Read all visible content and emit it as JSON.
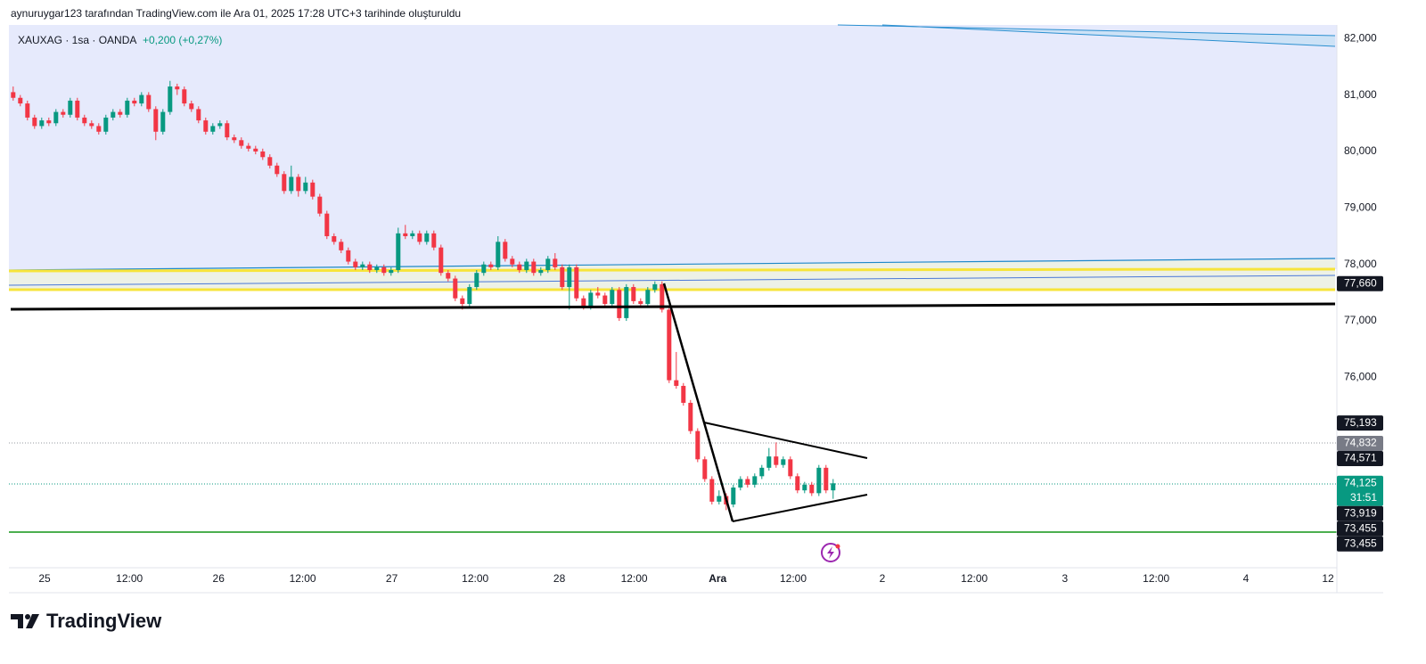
{
  "header": {
    "caption": "aynuruygar123 tarafından TradingView.com ile Ara 01, 2025 17:28 UTC+3 tarihinde oluşturuldu"
  },
  "chart_data": {
    "type": "candlestick",
    "symbol": "XAUXAG · 1sa · OANDA",
    "change": "+0,200 (+0,27%)",
    "up_color": "#089981",
    "down_color": "#f23645",
    "ohlc": [
      [
        81.05,
        81.15,
        80.9,
        80.95
      ],
      [
        80.95,
        81.0,
        80.8,
        80.85
      ],
      [
        80.85,
        80.9,
        80.55,
        80.6
      ],
      [
        80.6,
        80.65,
        80.4,
        80.45
      ],
      [
        80.45,
        80.6,
        80.4,
        80.55
      ],
      [
        80.55,
        80.6,
        80.45,
        80.5
      ],
      [
        80.5,
        80.75,
        80.45,
        80.7
      ],
      [
        80.7,
        80.75,
        80.6,
        80.65
      ],
      [
        80.65,
        80.95,
        80.6,
        80.9
      ],
      [
        80.9,
        80.95,
        80.55,
        80.6
      ],
      [
        80.6,
        80.65,
        80.45,
        80.5
      ],
      [
        80.5,
        80.55,
        80.4,
        80.45
      ],
      [
        80.45,
        80.5,
        80.3,
        80.35
      ],
      [
        80.35,
        80.65,
        80.3,
        80.6
      ],
      [
        80.6,
        80.75,
        80.55,
        80.7
      ],
      [
        80.7,
        80.75,
        80.6,
        80.65
      ],
      [
        80.65,
        80.95,
        80.6,
        80.9
      ],
      [
        80.9,
        80.95,
        80.8,
        80.85
      ],
      [
        80.85,
        81.05,
        80.8,
        81.0
      ],
      [
        81.0,
        81.05,
        80.7,
        80.75
      ],
      [
        80.75,
        80.8,
        80.2,
        80.35
      ],
      [
        80.35,
        80.75,
        80.3,
        80.7
      ],
      [
        80.7,
        81.25,
        80.65,
        81.15
      ],
      [
        81.15,
        81.2,
        81.0,
        81.1
      ],
      [
        81.1,
        81.15,
        80.8,
        80.85
      ],
      [
        80.85,
        80.9,
        80.7,
        80.75
      ],
      [
        80.75,
        80.8,
        80.5,
        80.55
      ],
      [
        80.55,
        80.6,
        80.3,
        80.35
      ],
      [
        80.35,
        80.5,
        80.3,
        80.45
      ],
      [
        80.45,
        80.55,
        80.4,
        80.5
      ],
      [
        80.5,
        80.55,
        80.2,
        80.25
      ],
      [
        80.25,
        80.3,
        80.15,
        80.2
      ],
      [
        80.2,
        80.25,
        80.05,
        80.1
      ],
      [
        80.1,
        80.15,
        80.0,
        80.05
      ],
      [
        80.05,
        80.1,
        79.95,
        80.0
      ],
      [
        80.0,
        80.05,
        79.85,
        79.9
      ],
      [
        79.9,
        79.95,
        79.7,
        79.75
      ],
      [
        79.75,
        79.8,
        79.55,
        79.6
      ],
      [
        79.6,
        79.65,
        79.25,
        79.3
      ],
      [
        79.3,
        79.75,
        79.25,
        79.55
      ],
      [
        79.55,
        79.6,
        79.2,
        79.3
      ],
      [
        79.3,
        79.55,
        79.25,
        79.45
      ],
      [
        79.45,
        79.5,
        79.15,
        79.2
      ],
      [
        79.2,
        79.25,
        78.85,
        78.9
      ],
      [
        78.9,
        78.95,
        78.45,
        78.5
      ],
      [
        78.5,
        78.55,
        78.35,
        78.4
      ],
      [
        78.4,
        78.45,
        78.2,
        78.25
      ],
      [
        78.25,
        78.3,
        78.0,
        78.05
      ],
      [
        78.05,
        78.1,
        77.9,
        77.95
      ],
      [
        77.95,
        78.05,
        77.9,
        78.0
      ],
      [
        78.0,
        78.05,
        77.85,
        77.9
      ],
      [
        77.9,
        78.0,
        77.85,
        77.95
      ],
      [
        77.95,
        78.0,
        77.8,
        77.85
      ],
      [
        77.85,
        77.95,
        77.8,
        77.9
      ],
      [
        77.9,
        78.65,
        77.85,
        78.55
      ],
      [
        78.55,
        78.7,
        78.45,
        78.5
      ],
      [
        78.5,
        78.6,
        78.45,
        78.55
      ],
      [
        78.55,
        78.6,
        78.35,
        78.4
      ],
      [
        78.4,
        78.6,
        78.35,
        78.55
      ],
      [
        78.55,
        78.6,
        78.25,
        78.3
      ],
      [
        78.3,
        78.35,
        77.8,
        77.85
      ],
      [
        77.85,
        77.9,
        77.7,
        77.75
      ],
      [
        77.75,
        77.8,
        77.35,
        77.4
      ],
      [
        77.4,
        77.45,
        77.2,
        77.3
      ],
      [
        77.3,
        77.65,
        77.25,
        77.6
      ],
      [
        77.6,
        77.9,
        77.55,
        77.85
      ],
      [
        77.85,
        78.05,
        77.8,
        78.0
      ],
      [
        78.0,
        78.05,
        77.9,
        77.95
      ],
      [
        77.95,
        78.5,
        77.9,
        78.4
      ],
      [
        78.4,
        78.45,
        78.05,
        78.1
      ],
      [
        78.1,
        78.15,
        77.95,
        78.0
      ],
      [
        78.0,
        78.05,
        77.85,
        77.9
      ],
      [
        77.9,
        78.1,
        77.85,
        78.05
      ],
      [
        78.05,
        78.1,
        77.8,
        77.85
      ],
      [
        77.85,
        77.95,
        77.8,
        77.9
      ],
      [
        77.9,
        78.15,
        77.85,
        78.1
      ],
      [
        78.1,
        78.2,
        77.9,
        77.95
      ],
      [
        77.95,
        78.0,
        77.55,
        77.6
      ],
      [
        77.6,
        78.0,
        77.2,
        77.95
      ],
      [
        77.95,
        78.0,
        77.35,
        77.4
      ],
      [
        77.4,
        77.45,
        77.2,
        77.25
      ],
      [
        77.25,
        77.55,
        77.2,
        77.5
      ],
      [
        77.5,
        77.6,
        77.4,
        77.45
      ],
      [
        77.45,
        77.5,
        77.25,
        77.3
      ],
      [
        77.3,
        77.6,
        77.25,
        77.55
      ],
      [
        77.55,
        77.6,
        77.0,
        77.05
      ],
      [
        77.05,
        77.65,
        77.0,
        77.6
      ],
      [
        77.6,
        77.65,
        77.3,
        77.35
      ],
      [
        77.35,
        77.4,
        77.25,
        77.3
      ],
      [
        77.3,
        77.6,
        77.25,
        77.55
      ],
      [
        77.55,
        77.7,
        77.5,
        77.65
      ],
      [
        77.65,
        77.7,
        77.15,
        77.2
      ],
      [
        77.2,
        77.25,
        75.9,
        75.95
      ],
      [
        75.95,
        76.45,
        75.8,
        75.85
      ],
      [
        75.85,
        75.9,
        75.5,
        75.55
      ],
      [
        75.55,
        75.6,
        75.0,
        75.05
      ],
      [
        75.05,
        75.1,
        74.5,
        74.55
      ],
      [
        74.55,
        74.6,
        74.15,
        74.2
      ],
      [
        74.2,
        74.25,
        73.75,
        73.8
      ],
      [
        73.8,
        74.0,
        73.75,
        73.9
      ],
      [
        73.9,
        73.95,
        73.65,
        73.75
      ],
      [
        73.75,
        74.1,
        73.7,
        74.05
      ],
      [
        74.05,
        74.25,
        74.0,
        74.2
      ],
      [
        74.2,
        74.25,
        74.05,
        74.1
      ],
      [
        74.1,
        74.3,
        74.05,
        74.25
      ],
      [
        74.25,
        74.45,
        74.2,
        74.4
      ],
      [
        74.4,
        74.75,
        74.35,
        74.6
      ],
      [
        74.6,
        74.85,
        74.4,
        74.45
      ],
      [
        74.45,
        74.6,
        74.4,
        74.55
      ],
      [
        74.55,
        74.6,
        74.2,
        74.25
      ],
      [
        74.25,
        74.3,
        73.95,
        74.0
      ],
      [
        74.0,
        74.15,
        73.95,
        74.1
      ],
      [
        74.1,
        74.15,
        73.9,
        73.95
      ],
      [
        73.95,
        74.45,
        73.9,
        74.4
      ],
      [
        74.4,
        74.45,
        73.95,
        74.0
      ],
      [
        74.0,
        74.2,
        73.85,
        74.125
      ]
    ],
    "xlim": [
      -0.6,
      185.4
    ],
    "xticks": [
      {
        "value": 4.4,
        "label": "25"
      },
      {
        "value": 16.3,
        "label": "12:00"
      },
      {
        "value": 28.8,
        "label": "26"
      },
      {
        "value": 40.6,
        "label": "12:00"
      },
      {
        "value": 53.1,
        "label": "27"
      },
      {
        "value": 64.8,
        "label": "12:00"
      },
      {
        "value": 76.6,
        "label": "28"
      },
      {
        "value": 87.1,
        "label": "12:00"
      },
      {
        "value": 98.8,
        "label": "Ara"
      },
      {
        "value": 109.4,
        "label": "12:00"
      },
      {
        "value": 121.9,
        "label": "2"
      },
      {
        "value": 134.8,
        "label": "12:00"
      },
      {
        "value": 147.5,
        "label": "3"
      },
      {
        "value": 160.3,
        "label": "12:00"
      },
      {
        "value": 172.9,
        "label": "4"
      },
      {
        "value": 184.4,
        "label": "12"
      }
    ],
    "ylim": [
      72.63,
      82.24
    ],
    "yticks": [
      {
        "value": 82,
        "label": "82,000"
      },
      {
        "value": 81,
        "label": "81,000"
      },
      {
        "value": 80,
        "label": "80,000"
      },
      {
        "value": 79,
        "label": "79,000"
      },
      {
        "value": 78,
        "label": "78,000"
      },
      {
        "value": 77,
        "label": "77,000"
      },
      {
        "value": 76,
        "label": "76,000"
      }
    ],
    "price_labels": [
      {
        "value": 77.66,
        "label": "77,660",
        "color": "#131722"
      },
      {
        "value": 75.193,
        "label": "75,193",
        "color": "#131722"
      },
      {
        "value": 74.832,
        "label": "74,832",
        "color": "#787b86"
      },
      {
        "value": 74.571,
        "label": "74,571",
        "color": "#131722"
      },
      {
        "value": 74.125,
        "label": "74,125",
        "color": "#089981"
      },
      {
        "value": 73.919,
        "label": "73,919",
        "color": "#131722"
      },
      {
        "value": 73.455,
        "label": "73,455",
        "color": "#131722"
      },
      {
        "value": 73.455,
        "label": "73,455",
        "color": "#131722"
      }
    ],
    "countdown": "31:51"
  },
  "footer": {
    "logo": "TradingView"
  }
}
